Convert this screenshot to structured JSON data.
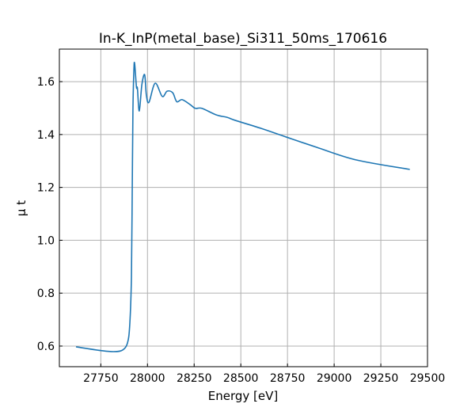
{
  "chart_data": {
    "type": "line",
    "title": "In-K_InP(metal_base)_Si311_50ms_170616",
    "xlabel": "Energy [eV]",
    "ylabel": "μ t",
    "xlim": [
      27528,
      29500
    ],
    "ylim": [
      0.522,
      1.723
    ],
    "grid": true,
    "xticks": [
      27750,
      28000,
      28250,
      28500,
      28750,
      29000,
      29250,
      29500
    ],
    "yticks": [
      0.6,
      0.8,
      1.0,
      1.2,
      1.4,
      1.6
    ],
    "ytick_labels": [
      "0.6",
      "0.8",
      "1.0",
      "1.2",
      "1.4",
      "1.6"
    ],
    "series": [
      {
        "name": "mu t",
        "color": "#1f77b4",
        "x": [
          27617,
          27761,
          27825,
          27867,
          27893,
          27905,
          27914,
          27918,
          27922,
          27927,
          27931,
          27941,
          27946,
          27956,
          27970,
          27985,
          27994,
          28008,
          28041,
          28079,
          28105,
          28135,
          28157,
          28185,
          28227,
          28256,
          28291,
          28369,
          28426,
          28468,
          28609,
          28745,
          28905,
          29117,
          29405
        ],
        "y": [
          0.597,
          0.582,
          0.579,
          0.585,
          0.612,
          0.681,
          0.86,
          1.16,
          1.49,
          1.64,
          1.669,
          1.579,
          1.575,
          1.489,
          1.589,
          1.626,
          1.549,
          1.522,
          1.594,
          1.544,
          1.564,
          1.558,
          1.524,
          1.532,
          1.514,
          1.499,
          1.499,
          1.474,
          1.465,
          1.454,
          1.423,
          1.39,
          1.352,
          1.304,
          1.268
        ]
      }
    ]
  }
}
